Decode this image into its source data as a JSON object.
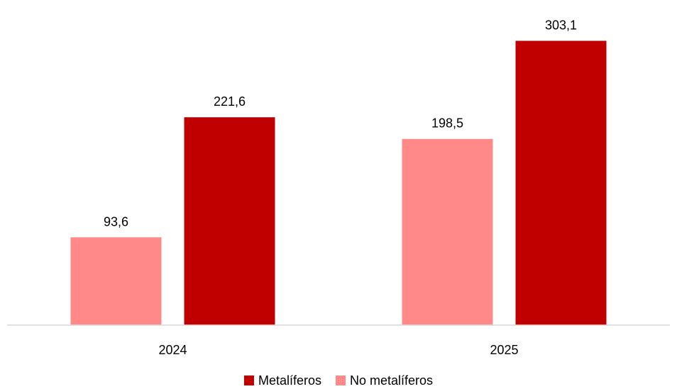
{
  "chart_data": {
    "type": "bar",
    "title": "",
    "xlabel": "",
    "ylabel": "",
    "categories": [
      "2024",
      "2025"
    ],
    "series": [
      {
        "name": "No metalíferos",
        "color": "#ff8888",
        "values": [
          93.6,
          198.5
        ],
        "labels": [
          "93,6",
          "198,5"
        ]
      },
      {
        "name": "Metalíferos",
        "color": "#c00000",
        "values": [
          221.6,
          303.1
        ],
        "labels": [
          "221,6",
          "303,1"
        ]
      }
    ],
    "ylim": [
      0,
      333
    ],
    "grid": false,
    "legend": {
      "position": "bottom",
      "order": [
        "Metalíferos",
        "No metalíferos"
      ]
    },
    "axis_color": "#d9d9d9"
  }
}
